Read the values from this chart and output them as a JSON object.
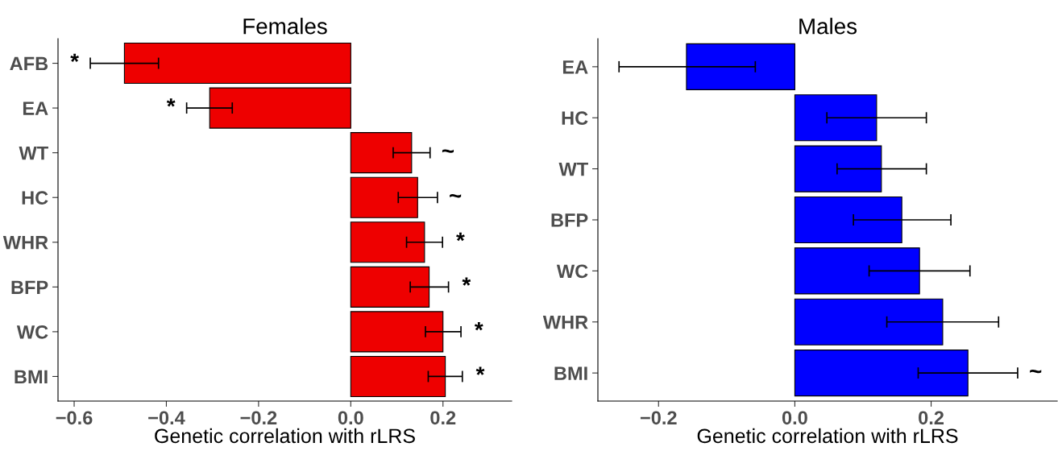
{
  "chart_data": [
    {
      "type": "bar",
      "orientation": "horizontal",
      "title": "Females",
      "xlabel": "Genetic correlation with rLRS",
      "categories": [
        "AFB",
        "EA",
        "WT",
        "HC",
        "WHR",
        "BFP",
        "WC",
        "BMI"
      ],
      "values": [
        -0.491,
        -0.306,
        0.132,
        0.145,
        0.16,
        0.17,
        0.2,
        0.205
      ],
      "errors": [
        [
          -0.565,
          -0.417
        ],
        [
          -0.356,
          -0.257
        ],
        [
          0.092,
          0.172
        ],
        [
          0.103,
          0.188
        ],
        [
          0.121,
          0.199
        ],
        [
          0.129,
          0.212
        ],
        [
          0.162,
          0.239
        ],
        [
          0.168,
          0.242
        ]
      ],
      "color": "#ee0000",
      "xlim": [
        -0.635,
        0.349
      ],
      "xticks": [
        {
          "value": -0.6,
          "label": "−0.6"
        },
        {
          "value": -0.4,
          "label": "−0.4"
        },
        {
          "value": -0.2,
          "label": "−0.2"
        },
        {
          "value": 0.0,
          "label": "0.0"
        },
        {
          "value": 0.2,
          "label": "0.2"
        }
      ],
      "grid": false,
      "legend": false,
      "value_labels": [
        "*",
        "*",
        "~",
        "~",
        "*",
        "*",
        "*",
        "*"
      ]
    },
    {
      "type": "bar",
      "orientation": "horizontal",
      "title": "Males",
      "xlabel": "Genetic correlation with rLRS",
      "categories": [
        "EA",
        "HC",
        "WT",
        "BFP",
        "WC",
        "WHR",
        "BMI"
      ],
      "values": [
        -0.159,
        0.12,
        0.127,
        0.157,
        0.183,
        0.217,
        0.254
      ],
      "errors": [
        [
          -0.258,
          -0.058
        ],
        [
          0.047,
          0.193
        ],
        [
          0.062,
          0.193
        ],
        [
          0.086,
          0.229
        ],
        [
          0.109,
          0.257
        ],
        [
          0.135,
          0.299
        ],
        [
          0.181,
          0.327
        ]
      ],
      "color": "#0000ff",
      "xlim": [
        -0.289,
        0.385
      ],
      "xticks": [
        {
          "value": -0.2,
          "label": "−0.2"
        },
        {
          "value": 0.0,
          "label": "0.0"
        },
        {
          "value": 0.2,
          "label": "0.2"
        }
      ],
      "grid": false,
      "legend": false,
      "value_labels": [
        null,
        null,
        null,
        null,
        null,
        null,
        "~"
      ]
    }
  ]
}
